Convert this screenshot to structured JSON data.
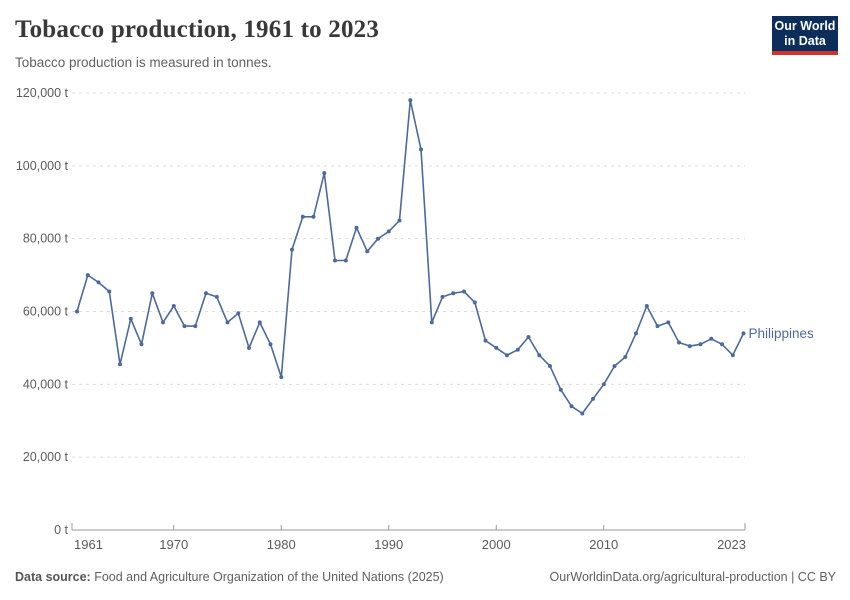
{
  "header": {
    "title": "Tobacco production, 1961 to 2023",
    "subtitle": "Tobacco production is measured in tonnes.",
    "logo": {
      "line1": "Our World",
      "line2": "in Data"
    }
  },
  "footer": {
    "source_label": "Data source:",
    "source_text": " Food and Agriculture Organization of the United Nations (2025)",
    "link_text": "OurWorldinData.org/agricultural-production | CC BY"
  },
  "colors": {
    "line": "#4c6a9c",
    "grid": "#dcdcdc",
    "axis": "#999999",
    "tick_text": "#5b5b5b",
    "logo_bg": "#0d2e5a",
    "logo_red": "#d0342c"
  },
  "chart_data": {
    "type": "line",
    "title": "Tobacco production, 1961 to 2023",
    "subtitle": "Tobacco production is measured in tonnes.",
    "xlabel": "",
    "ylabel": "",
    "unit": "tonnes",
    "grid": "horizontal-dashed",
    "legend_position": "end-of-line-label",
    "xlim": [
      1961,
      2023
    ],
    "ylim": [
      0,
      120000
    ],
    "xticks": [
      1961,
      1970,
      1980,
      1990,
      2000,
      2010,
      2023
    ],
    "xtick_labels": [
      "1961",
      "1970",
      "1980",
      "1990",
      "2000",
      "2010",
      "2023"
    ],
    "yticks": [
      0,
      20000,
      40000,
      60000,
      80000,
      100000,
      120000
    ],
    "ytick_labels": [
      "0 t",
      "20,000 t",
      "40,000 t",
      "60,000 t",
      "80,000 t",
      "100,000 t",
      "120,000 t"
    ],
    "series": [
      {
        "name": "Philippines",
        "color": "#4c6a9c",
        "points": [
          [
            1961,
            60000
          ],
          [
            1962,
            70000
          ],
          [
            1963,
            68000
          ],
          [
            1964,
            65500
          ],
          [
            1965,
            45500
          ],
          [
            1966,
            58000
          ],
          [
            1967,
            51000
          ],
          [
            1968,
            65000
          ],
          [
            1969,
            57000
          ],
          [
            1970,
            61500
          ],
          [
            1971,
            56000
          ],
          [
            1972,
            56000
          ],
          [
            1973,
            65000
          ],
          [
            1974,
            64000
          ],
          [
            1975,
            57000
          ],
          [
            1976,
            59500
          ],
          [
            1977,
            50000
          ],
          [
            1978,
            57000
          ],
          [
            1979,
            51000
          ],
          [
            1980,
            42000
          ],
          [
            1981,
            77000
          ],
          [
            1982,
            86000
          ],
          [
            1983,
            86000
          ],
          [
            1984,
            98000
          ],
          [
            1985,
            74000
          ],
          [
            1986,
            74000
          ],
          [
            1987,
            83000
          ],
          [
            1988,
            76500
          ],
          [
            1989,
            80000
          ],
          [
            1990,
            82000
          ],
          [
            1991,
            85000
          ],
          [
            1992,
            118000
          ],
          [
            1993,
            104500
          ],
          [
            1994,
            57000
          ],
          [
            1995,
            64000
          ],
          [
            1996,
            65000
          ],
          [
            1997,
            65500
          ],
          [
            1998,
            62500
          ],
          [
            1999,
            52000
          ],
          [
            2000,
            50000
          ],
          [
            2001,
            48000
          ],
          [
            2002,
            49500
          ],
          [
            2003,
            53000
          ],
          [
            2004,
            48000
          ],
          [
            2005,
            45000
          ],
          [
            2006,
            38500
          ],
          [
            2007,
            34000
          ],
          [
            2008,
            32000
          ],
          [
            2009,
            36000
          ],
          [
            2010,
            40000
          ],
          [
            2011,
            45000
          ],
          [
            2012,
            47500
          ],
          [
            2013,
            54000
          ],
          [
            2014,
            61500
          ],
          [
            2015,
            56000
          ],
          [
            2016,
            57000
          ],
          [
            2017,
            51500
          ],
          [
            2018,
            50500
          ],
          [
            2019,
            51000
          ],
          [
            2020,
            52500
          ],
          [
            2021,
            51000
          ],
          [
            2022,
            48000
          ],
          [
            2023,
            54000
          ]
        ]
      }
    ]
  }
}
